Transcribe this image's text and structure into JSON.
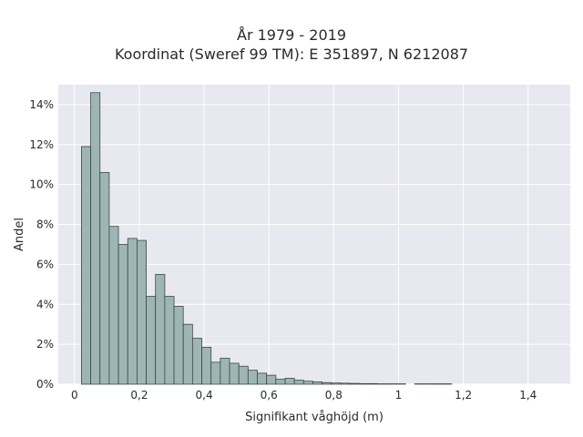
{
  "chart_data": {
    "type": "bar",
    "title": "År 1979 - 2019",
    "subtitle": "Koordinat (Sweref 99 TM): E 351897, N 6212087",
    "xlabel": "Signifikant våghöjd (m)",
    "ylabel": "Andel",
    "xlim": [
      -0.05,
      1.53
    ],
    "ylim": [
      0,
      15
    ],
    "grid": true,
    "colors": {
      "background": "#e8e8f1",
      "bar_fill": "#9db5b5",
      "bar_edge": "#3d4848",
      "grid": "#ffffff"
    },
    "x_ticks": [
      {
        "value": 0,
        "label": "0"
      },
      {
        "value": 0.2,
        "label": "0,2"
      },
      {
        "value": 0.4,
        "label": "0,4"
      },
      {
        "value": 0.6,
        "label": "0,6"
      },
      {
        "value": 0.8,
        "label": "0,8"
      },
      {
        "value": 1.0,
        "label": "1"
      },
      {
        "value": 1.2,
        "label": "1,2"
      },
      {
        "value": 1.4,
        "label": "1,4"
      }
    ],
    "y_ticks": [
      {
        "value": 0,
        "label": "0%"
      },
      {
        "value": 2,
        "label": "2%"
      },
      {
        "value": 4,
        "label": "4%"
      },
      {
        "value": 6,
        "label": "6%"
      },
      {
        "value": 8,
        "label": "8%"
      },
      {
        "value": 10,
        "label": "10%"
      },
      {
        "value": 12,
        "label": "12%"
      },
      {
        "value": 14,
        "label": "14%"
      }
    ],
    "bin_width": 0.0286,
    "bins_x": [
      0.0214,
      0.05,
      0.0786,
      0.1071,
      0.1357,
      0.1643,
      0.1929,
      0.2214,
      0.25,
      0.2786,
      0.3071,
      0.3357,
      0.3643,
      0.3929,
      0.4214,
      0.45,
      0.4786,
      0.5071,
      0.5357,
      0.5643,
      0.5929,
      0.6214,
      0.65,
      0.6786,
      0.7071,
      0.7357,
      0.7643,
      0.7929,
      0.8214,
      0.85,
      0.8786,
      0.9071,
      0.9357,
      0.9643,
      0.9929,
      1.0214,
      1.05,
      1.0786,
      1.1071,
      1.1357
    ],
    "values": [
      11.9,
      14.6,
      10.6,
      7.9,
      7.0,
      7.3,
      7.2,
      4.4,
      5.5,
      4.4,
      3.9,
      3.0,
      2.3,
      1.85,
      1.1,
      1.3,
      1.05,
      0.9,
      0.7,
      0.55,
      0.45,
      0.25,
      0.3,
      0.2,
      0.15,
      0.12,
      0.08,
      0.06,
      0.05,
      0.04,
      0.03,
      0.03,
      0.02,
      0.02,
      0.02,
      0.0,
      0.02,
      0.02,
      0.02,
      0.02
    ]
  }
}
